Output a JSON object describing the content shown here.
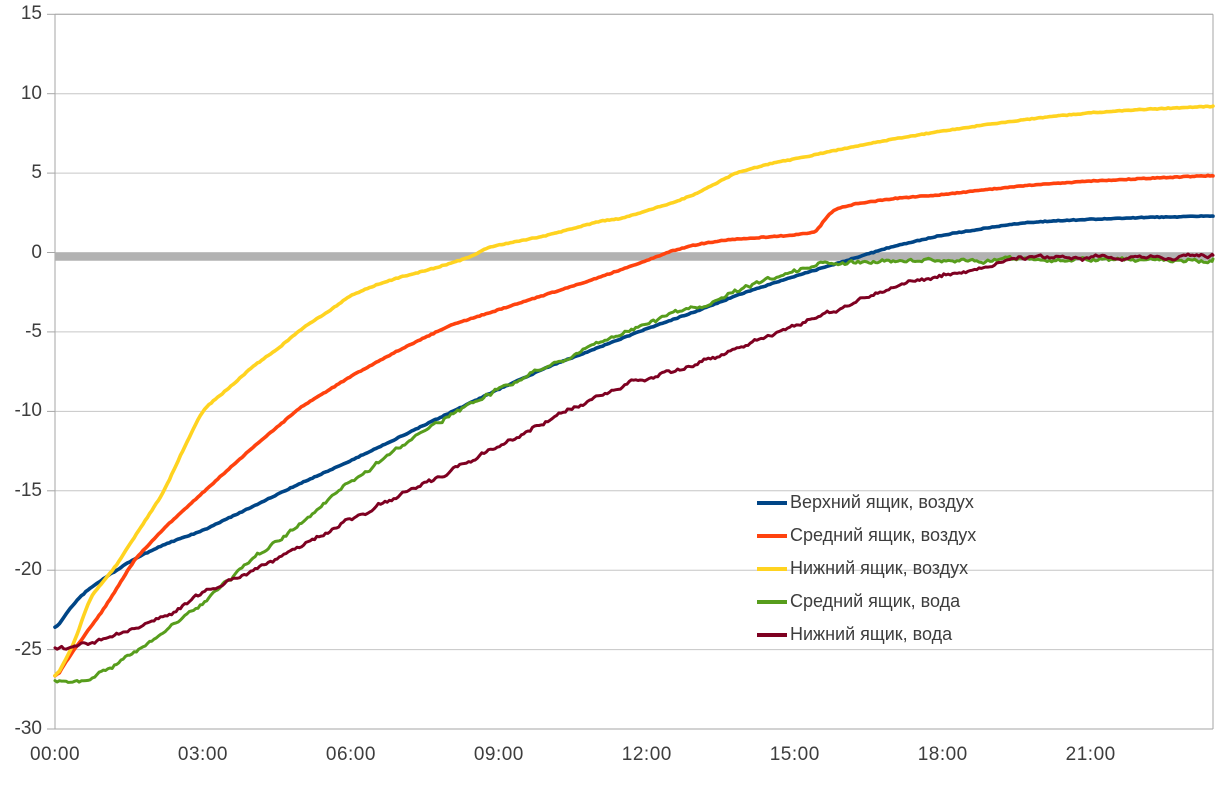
{
  "chart_data": {
    "type": "line",
    "grid": true,
    "legend_position": "center-right",
    "x_axis": {
      "unit": "time",
      "tick_labels": [
        "00:00",
        "03:00",
        "06:00",
        "09:00",
        "12:00",
        "15:00",
        "18:00",
        "21:00"
      ],
      "tick_hours": [
        0,
        3,
        6,
        9,
        12,
        15,
        18,
        21
      ],
      "range_hours": [
        0,
        23.48
      ]
    },
    "y_axis": {
      "unit": "degrees",
      "tick_values": [
        15,
        10,
        5,
        0,
        -5,
        -10,
        -15,
        -20,
        -25,
        -30
      ],
      "tick_labels": [
        "15",
        "10",
        "5",
        "0",
        "-5",
        "-10",
        "-15",
        "-20",
        "-25",
        "-30"
      ],
      "range": [
        -30,
        15
      ]
    },
    "reference_line": {
      "value": -0.27,
      "color": "#b2b2b2",
      "thickness_px": 8
    },
    "series": [
      {
        "id": "top-box-air",
        "name": "Верхний ящик, воздух",
        "color": "#004586",
        "noisy": false,
        "points": [
          [
            0,
            -23.8
          ],
          [
            0.3,
            -22.4
          ],
          [
            0.6,
            -21.4
          ],
          [
            1,
            -20.5
          ],
          [
            1.6,
            -19.3
          ],
          [
            2.2,
            -18.4
          ],
          [
            3,
            -17.5
          ],
          [
            4,
            -16
          ],
          [
            5,
            -14.5
          ],
          [
            6,
            -13.1
          ],
          [
            7,
            -11.6
          ],
          [
            8,
            -10.1
          ],
          [
            9,
            -8.6
          ],
          [
            10,
            -7.2
          ],
          [
            11,
            -6
          ],
          [
            12,
            -4.8
          ],
          [
            13,
            -3.7
          ],
          [
            14,
            -2.5
          ],
          [
            15,
            -1.5
          ],
          [
            16,
            -0.55
          ],
          [
            17,
            0.4
          ],
          [
            18,
            1.1
          ],
          [
            19,
            1.6
          ],
          [
            19.7,
            1.9
          ],
          [
            21,
            2.1
          ],
          [
            22,
            2.2
          ],
          [
            23.48,
            2.3
          ]
        ]
      },
      {
        "id": "middle-box-air",
        "name": "Средний ящик, воздух",
        "color": "#ff420e",
        "noisy": false,
        "points": [
          [
            0,
            -26.9
          ],
          [
            0.3,
            -25.4
          ],
          [
            0.6,
            -24.1
          ],
          [
            1,
            -22.4
          ],
          [
            1.6,
            -19.4
          ],
          [
            2.2,
            -17.4
          ],
          [
            3,
            -15.1
          ],
          [
            4,
            -12.3
          ],
          [
            5,
            -9.7
          ],
          [
            6,
            -7.8
          ],
          [
            7,
            -6.1
          ],
          [
            8,
            -4.6
          ],
          [
            9,
            -3.6
          ],
          [
            10,
            -2.6
          ],
          [
            11,
            -1.6
          ],
          [
            12,
            -0.5
          ],
          [
            12.5,
            0.1
          ],
          [
            13,
            0.5
          ],
          [
            13.6,
            0.8
          ],
          [
            14.3,
            0.95
          ],
          [
            15,
            1.1
          ],
          [
            15.45,
            1.3
          ],
          [
            15.6,
            2.1
          ],
          [
            15.8,
            2.7
          ],
          [
            16.2,
            3.05
          ],
          [
            17,
            3.4
          ],
          [
            18,
            3.65
          ],
          [
            19,
            4
          ],
          [
            20,
            4.3
          ],
          [
            21,
            4.5
          ],
          [
            22,
            4.65
          ],
          [
            23.48,
            4.85
          ]
        ]
      },
      {
        "id": "bottom-box-air",
        "name": "Нижний ящик, воздух",
        "color": "#ffd320",
        "noisy": false,
        "points": [
          [
            0,
            -26.9
          ],
          [
            0.2,
            -25.7
          ],
          [
            0.4,
            -24.5
          ],
          [
            0.7,
            -21.8
          ],
          [
            1,
            -20.6
          ],
          [
            1.2,
            -19.9
          ],
          [
            1.7,
            -17.5
          ],
          [
            2.2,
            -15.1
          ],
          [
            2.6,
            -12.4
          ],
          [
            3,
            -9.9
          ],
          [
            3.5,
            -8.6
          ],
          [
            4,
            -7.2
          ],
          [
            4.5,
            -6.1
          ],
          [
            5,
            -4.8
          ],
          [
            5.5,
            -3.8
          ],
          [
            6,
            -2.7
          ],
          [
            6.5,
            -2.05
          ],
          [
            7,
            -1.55
          ],
          [
            7.5,
            -1.15
          ],
          [
            8,
            -0.7
          ],
          [
            8.45,
            -0.25
          ],
          [
            8.8,
            0.35
          ],
          [
            9.3,
            0.65
          ],
          [
            10,
            1.1
          ],
          [
            10.6,
            1.6
          ],
          [
            11.1,
            2
          ],
          [
            11.5,
            2.15
          ],
          [
            12,
            2.65
          ],
          [
            12.5,
            3.1
          ],
          [
            13,
            3.7
          ],
          [
            13.8,
            5
          ],
          [
            14.5,
            5.6
          ],
          [
            15.1,
            5.95
          ],
          [
            16,
            6.55
          ],
          [
            17,
            7.15
          ],
          [
            18,
            7.65
          ],
          [
            19,
            8.1
          ],
          [
            20,
            8.5
          ],
          [
            21,
            8.8
          ],
          [
            22,
            9
          ],
          [
            23,
            9.15
          ],
          [
            23.48,
            9.2
          ]
        ]
      },
      {
        "id": "middle-box-water",
        "name": "Средний ящик, вода",
        "color": "#579d1c",
        "noisy": true,
        "points": [
          [
            0,
            -26.9
          ],
          [
            0.3,
            -27
          ],
          [
            0.6,
            -26.9
          ],
          [
            0.9,
            -26.5
          ],
          [
            1.2,
            -26
          ],
          [
            1.5,
            -25.4
          ],
          [
            2,
            -24.4
          ],
          [
            2.5,
            -23.2
          ],
          [
            3,
            -22
          ],
          [
            3.4,
            -20.85
          ],
          [
            4,
            -19.3
          ],
          [
            5,
            -17.1
          ],
          [
            6,
            -14.4
          ],
          [
            7,
            -12.3
          ],
          [
            8,
            -10.3
          ],
          [
            9,
            -8.6
          ],
          [
            9.5,
            -7.85
          ],
          [
            10,
            -7.1
          ],
          [
            11,
            -5.7
          ],
          [
            12,
            -4.4
          ],
          [
            12.8,
            -3.6
          ],
          [
            13.5,
            -2.85
          ],
          [
            14.2,
            -2
          ],
          [
            14.7,
            -1.5
          ],
          [
            15.2,
            -1.05
          ],
          [
            15.7,
            -0.75
          ],
          [
            16.2,
            -0.6
          ],
          [
            17,
            -0.55
          ],
          [
            18,
            -0.55
          ],
          [
            19,
            -0.5
          ],
          [
            20,
            -0.48
          ],
          [
            21,
            -0.46
          ],
          [
            22,
            -0.45
          ],
          [
            23.48,
            -0.42
          ]
        ]
      },
      {
        "id": "bottom-box-water",
        "name": "Нижний ящик, вода",
        "color": "#7e0021",
        "noisy": true,
        "points": [
          [
            0,
            -25
          ],
          [
            0.4,
            -24.9
          ],
          [
            0.8,
            -24.6
          ],
          [
            1.2,
            -24.2
          ],
          [
            1.6,
            -23.75
          ],
          [
            2,
            -23.2
          ],
          [
            2.5,
            -22.45
          ],
          [
            3,
            -21.4
          ],
          [
            3.4,
            -20.85
          ],
          [
            4,
            -20
          ],
          [
            5,
            -18.5
          ],
          [
            6,
            -16.85
          ],
          [
            7,
            -15.3
          ],
          [
            8,
            -13.75
          ],
          [
            9,
            -12.15
          ],
          [
            10,
            -10.55
          ],
          [
            11,
            -9.1
          ],
          [
            12,
            -7.85
          ],
          [
            12.8,
            -7.2
          ],
          [
            14,
            -5.8
          ],
          [
            15,
            -4.6
          ],
          [
            16,
            -3.4
          ],
          [
            16.7,
            -2.65
          ],
          [
            17.5,
            -1.9
          ],
          [
            18.4,
            -1.2
          ],
          [
            19,
            -0.8
          ],
          [
            19.5,
            -0.55
          ],
          [
            20,
            -0.42
          ],
          [
            20.5,
            -0.35
          ],
          [
            21,
            -0.31
          ],
          [
            22,
            -0.29
          ],
          [
            23.48,
            -0.27
          ]
        ]
      }
    ]
  },
  "colors": {
    "background": "#ffffff",
    "gridline": "#c6c6c6",
    "axis": "#a6a6a6",
    "label_text": "#3d3d3d"
  }
}
